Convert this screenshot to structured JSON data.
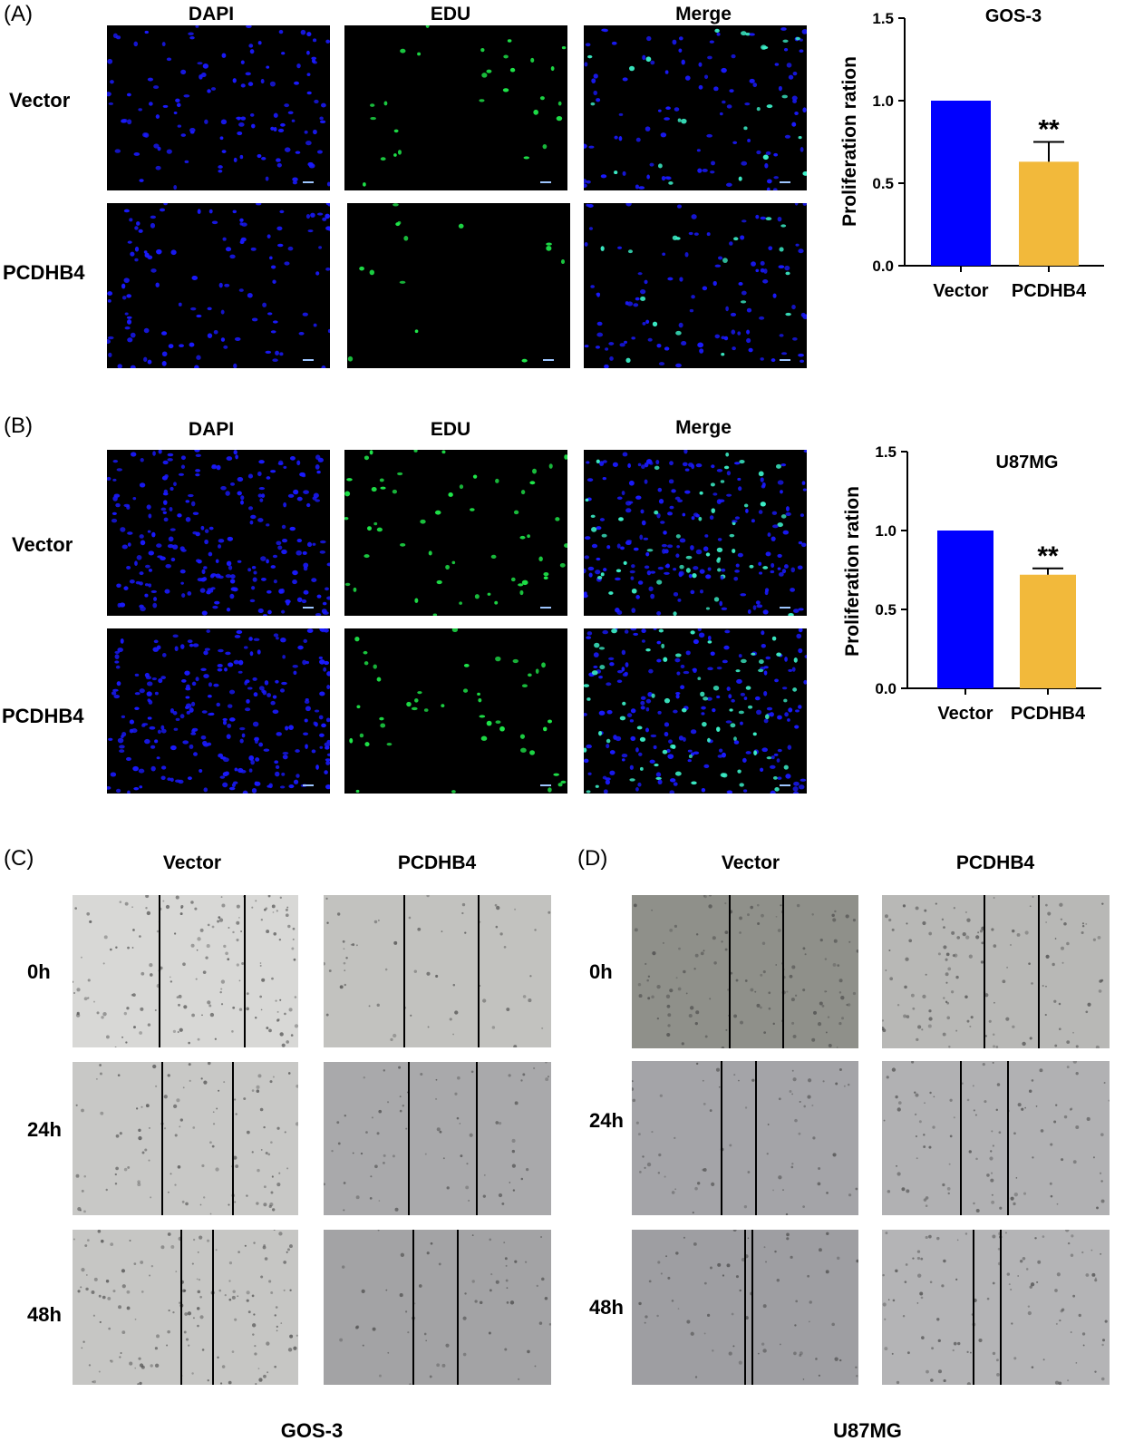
{
  "panel_labels": {
    "a": "(A)",
    "b": "(B)",
    "c": "(C)",
    "d": "(D)"
  },
  "edu": {
    "columns": [
      "DAPI",
      "EDU",
      "Merge"
    ],
    "rows": [
      "Vector",
      "PCDHB4"
    ]
  },
  "wound": {
    "columns": [
      "Vector",
      "PCDHB4"
    ],
    "times": [
      "0h",
      "24h",
      "48h"
    ],
    "cell_lines": [
      "GOS-3",
      "U87MG"
    ]
  },
  "colors": {
    "vector": "#0000ff",
    "pcdhb4": "#f2b93b",
    "dapi": "#1a1aff",
    "edu": "#1fe84a"
  },
  "icons": {
    "significance": "double-asterisk"
  },
  "chart_data": [
    {
      "type": "bar",
      "title": "GOS-3",
      "ylabel": "Proliferation ration",
      "xlabel": "",
      "categories": [
        "Vector",
        "PCDHB4"
      ],
      "values": [
        1.0,
        0.63
      ],
      "errors": [
        0,
        0.12
      ],
      "annotations": [
        "",
        "**"
      ],
      "ylim": [
        0,
        1.5
      ],
      "yticks": [
        "0.0",
        "0.5",
        "1.0",
        "1.5"
      ],
      "grid": false
    },
    {
      "type": "bar",
      "title": "U87MG",
      "ylabel": "Proliferation ration",
      "xlabel": "",
      "categories": [
        "Vector",
        "PCDHB4"
      ],
      "values": [
        1.0,
        0.72
      ],
      "errors": [
        0,
        0.04
      ],
      "annotations": [
        "",
        "**"
      ],
      "ylim": [
        0,
        1.5
      ],
      "yticks": [
        "0.0",
        "0.5",
        "1.0",
        "1.5"
      ],
      "grid": false
    }
  ]
}
